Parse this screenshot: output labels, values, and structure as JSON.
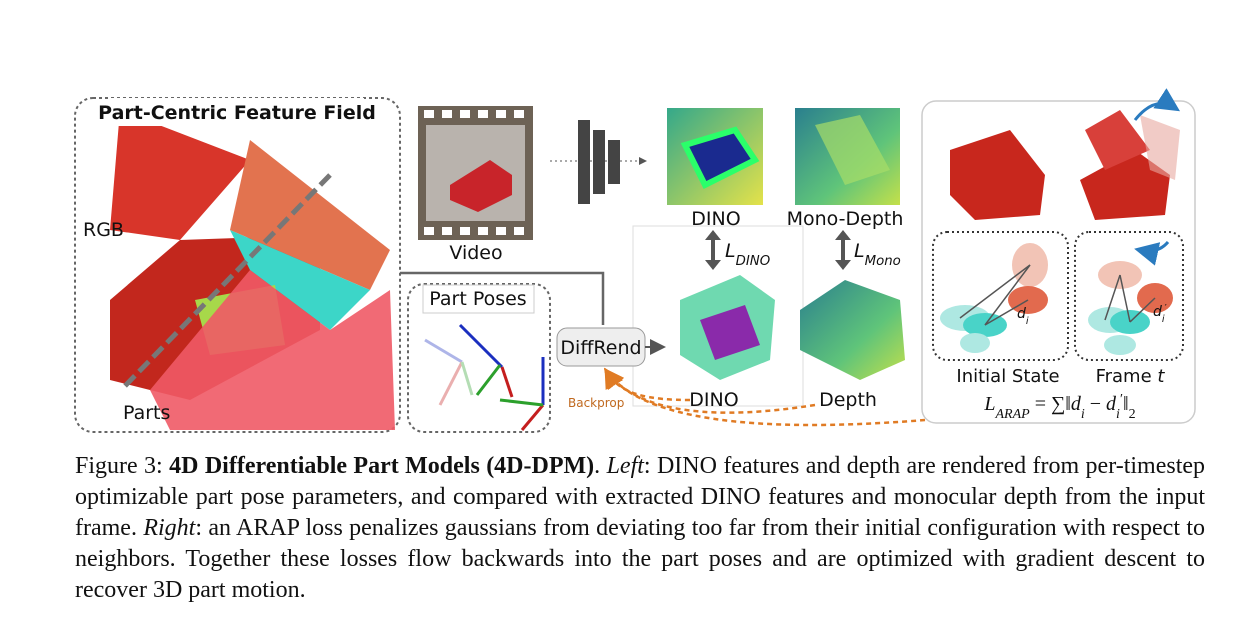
{
  "left_panel": {
    "title": "Part-Centric Feature Field",
    "rgb_label": "RGB",
    "parts_label": "Parts"
  },
  "video_label": "Video",
  "targets": {
    "dino_label": "DINO",
    "depth_label": "Mono-Depth"
  },
  "losses": {
    "dino": [
      {
        "text": "L",
        "style": "italic"
      },
      {
        "text": "DINO",
        "style": "sub-italic"
      }
    ],
    "mono": [
      {
        "text": "L",
        "style": "italic"
      },
      {
        "text": "Mono",
        "style": "sub-italic"
      }
    ]
  },
  "part_poses_label": "Part Poses",
  "renderer_label": "DiffRend",
  "backprop_label": "Backprop",
  "rendered": {
    "dino_label": "DINO",
    "depth_label": "Depth"
  },
  "right_panel": {
    "initial_label": "Initial State",
    "frame_label": [
      {
        "text": "Frame ",
        "style": "normal"
      },
      {
        "text": "t",
        "style": "italic"
      }
    ],
    "distance": [
      {
        "text": "d",
        "style": "italic"
      },
      {
        "text": "i",
        "style": "sub-italic"
      }
    ],
    "distance_prime": [
      {
        "text": "d",
        "style": "italic"
      },
      {
        "text": "i",
        "style": "sub-italic"
      },
      {
        "text": "′",
        "style": "sup"
      }
    ],
    "arap_loss": [
      {
        "text": "L",
        "style": "italic"
      },
      {
        "text": "ARAP",
        "style": "sub-italic"
      },
      {
        "text": " = ∑‖",
        "style": "normal"
      },
      {
        "text": "d",
        "style": "italic"
      },
      {
        "text": "i",
        "style": "sub-italic"
      },
      {
        "text": " − ",
        "style": "normal"
      },
      {
        "text": "d",
        "style": "italic"
      },
      {
        "text": "i",
        "style": "sub-italic"
      },
      {
        "text": "′",
        "style": "sup"
      },
      {
        "text": "‖",
        "style": "normal"
      },
      {
        "text": "2",
        "style": "sub"
      }
    ]
  },
  "caption": [
    {
      "text": "Figure 3: ",
      "style": "normal"
    },
    {
      "text": "4D Differentiable Part Models (4D-DPM)",
      "style": "bold"
    },
    {
      "text": ". ",
      "style": "normal"
    },
    {
      "text": "Left",
      "style": "italic"
    },
    {
      "text": ": DINO features and depth are rendered from per-timestep optimizable part pose parameters, and compared with extracted DINO features and monocular depth from the input frame. ",
      "style": "normal"
    },
    {
      "text": "Right",
      "style": "italic"
    },
    {
      "text": ": an ARAP loss penalizes gaussians from deviating too far from their initial configuration with respect to neighbors. Together these losses flow backwards into the part poses and are optimized with gradient descent to recover 3D part motion.",
      "style": "normal"
    }
  ]
}
